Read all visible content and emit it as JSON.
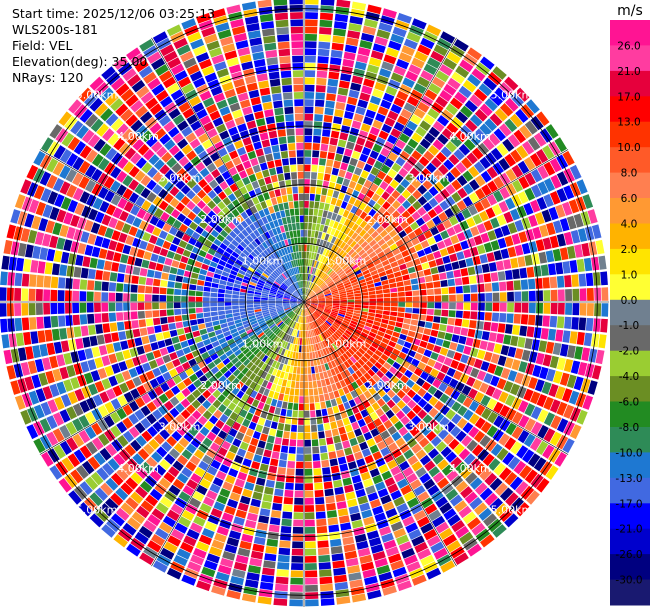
{
  "info": {
    "start_time": "Start time: 2025/12/06 03:25:13",
    "instrument": "WLS200s-181",
    "field": "Field: VEL",
    "elevation": "Elevation(deg): 35.00",
    "nrays": "NRays: 120"
  },
  "chart_data": {
    "type": "heatmap",
    "projection": "polar-ppi",
    "field": "VEL",
    "units": "m/s",
    "n_rays": 120,
    "range_labels": [
      "1.00km",
      "2.00km",
      "3.00km",
      "4.00km",
      "5.00km"
    ],
    "max_range_km": 5.2,
    "velocity_pattern": {
      "inner_range_km": 1.8,
      "toward_sector": "west",
      "away_sector": "east-southeast",
      "toward_max": -17.0,
      "away_max": 13.0
    },
    "colorbar": {
      "label": "m/s",
      "ticks": [
        "26.0",
        "21.0",
        "17.0",
        "13.0",
        "10.0",
        "8.0",
        "6.0",
        "4.0",
        "2.0",
        "1.0",
        "0.0",
        "-1.0",
        "-2.0",
        "-4.0",
        "-6.0",
        "-8.0",
        "-10.0",
        "-13.0",
        "-17.0",
        "-21.0",
        "-26.0",
        "-30.0"
      ],
      "colors": [
        "#ff1493",
        "#ff3ca0",
        "#e6003c",
        "#ff0000",
        "#ff3300",
        "#ff5a28",
        "#ff7f50",
        "#ff9933",
        "#ffb300",
        "#ffe400",
        "#ffff33",
        "#708090",
        "#696969",
        "#9acd32",
        "#6b8e23",
        "#228b22",
        "#2e8b57",
        "#1e78d2",
        "#4169e1",
        "#0000ff",
        "#0000cd",
        "#000080",
        "#191970"
      ]
    }
  }
}
